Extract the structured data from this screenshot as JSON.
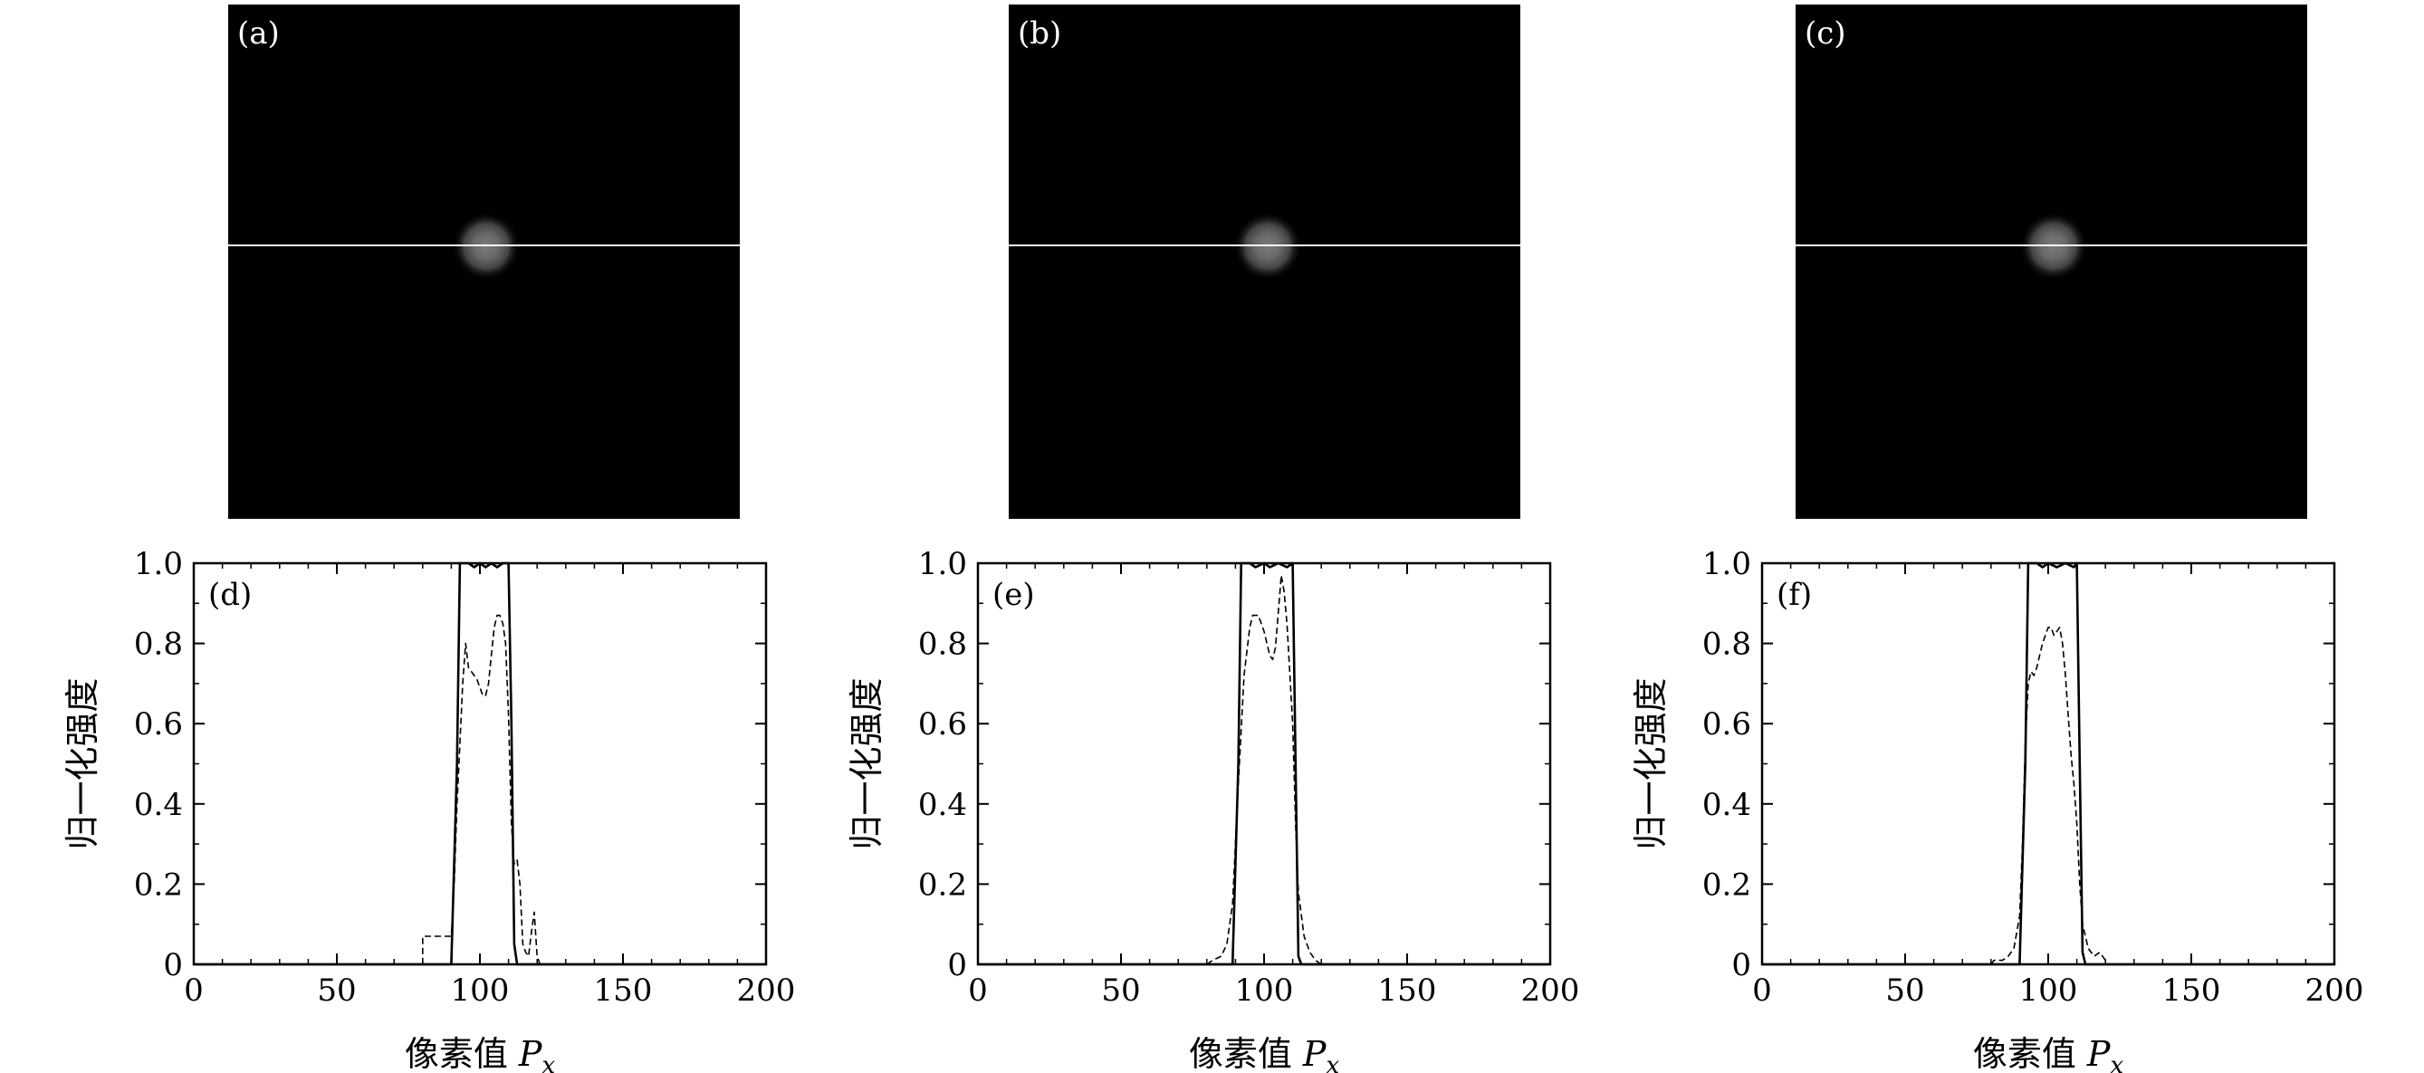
{
  "images": [
    {
      "label": "(a)"
    },
    {
      "label": "(b)"
    },
    {
      "label": "(c)"
    }
  ],
  "chart_data": [
    {
      "type": "line",
      "panel_label": "(d)",
      "xlabel_text": "像素值 ",
      "xlabel_var": "P",
      "xlabel_sub": "x",
      "ylabel": "归一化强度",
      "xlim": [
        0,
        200
      ],
      "ylim": [
        0,
        1
      ],
      "xticks": [
        "0",
        "50",
        "100",
        "150",
        "200"
      ],
      "yticks": [
        "0",
        "0.2",
        "0.4",
        "0.6",
        "0.8",
        "1.0"
      ],
      "grid": false,
      "series": [
        {
          "style": "solid",
          "points": [
            [
              0,
              0
            ],
            [
              90,
              0
            ],
            [
              92,
              0.5
            ],
            [
              93,
              1.0
            ],
            [
              96,
              1.0
            ],
            [
              98,
              0.99
            ],
            [
              100,
              1.0
            ],
            [
              102,
              0.99
            ],
            [
              104,
              1.0
            ],
            [
              106,
              0.99
            ],
            [
              108,
              1.0
            ],
            [
              110,
              1.0
            ],
            [
              111,
              0.6
            ],
            [
              112,
              0.05
            ],
            [
              113,
              0
            ],
            [
              200,
              0
            ]
          ]
        },
        {
          "style": "dashed",
          "points": [
            [
              0,
              0
            ],
            [
              80,
              0
            ],
            [
              80,
              0.07
            ],
            [
              85,
              0.07
            ],
            [
              90,
              0.07
            ],
            [
              91,
              0.2
            ],
            [
              92,
              0.4
            ],
            [
              93,
              0.55
            ],
            [
              94,
              0.7
            ],
            [
              95,
              0.8
            ],
            [
              96,
              0.74
            ],
            [
              97,
              0.73
            ],
            [
              98,
              0.72
            ],
            [
              99,
              0.71
            ],
            [
              100,
              0.69
            ],
            [
              101,
              0.67
            ],
            [
              102,
              0.67
            ],
            [
              103,
              0.7
            ],
            [
              104,
              0.77
            ],
            [
              105,
              0.84
            ],
            [
              106,
              0.87
            ],
            [
              107,
              0.87
            ],
            [
              108,
              0.85
            ],
            [
              109,
              0.8
            ],
            [
              110,
              0.62
            ],
            [
              111,
              0.35
            ],
            [
              112,
              0.25
            ],
            [
              113,
              0.26
            ],
            [
              114,
              0.2
            ],
            [
              115,
              0.05
            ],
            [
              116,
              0.03
            ],
            [
              117,
              0.02
            ],
            [
              118,
              0.08
            ],
            [
              119,
              0.13
            ],
            [
              120,
              0.02
            ],
            [
              121,
              0
            ],
            [
              200,
              0
            ]
          ]
        }
      ]
    },
    {
      "type": "line",
      "panel_label": "(e)",
      "xlabel_text": "像素值 ",
      "xlabel_var": "P",
      "xlabel_sub": "x",
      "ylabel": "归一化强度",
      "xlim": [
        0,
        200
      ],
      "ylim": [
        0,
        1
      ],
      "xticks": [
        "0",
        "50",
        "100",
        "150",
        "200"
      ],
      "yticks": [
        "0",
        "0.2",
        "0.4",
        "0.6",
        "0.8",
        "1.0"
      ],
      "grid": false,
      "series": [
        {
          "style": "solid",
          "points": [
            [
              0,
              0
            ],
            [
              89,
              0
            ],
            [
              91,
              0.5
            ],
            [
              92,
              1.0
            ],
            [
              95,
              1.0
            ],
            [
              97,
              0.99
            ],
            [
              100,
              1.0
            ],
            [
              102,
              0.99
            ],
            [
              105,
              1.0
            ],
            [
              108,
              0.99
            ],
            [
              110,
              1.0
            ],
            [
              111,
              0.5
            ],
            [
              112,
              0.02
            ],
            [
              113,
              0
            ],
            [
              200,
              0
            ]
          ]
        },
        {
          "style": "dashed",
          "points": [
            [
              0,
              0
            ],
            [
              80,
              0
            ],
            [
              82,
              0.01
            ],
            [
              85,
              0.02
            ],
            [
              87,
              0.05
            ],
            [
              89,
              0.15
            ],
            [
              91,
              0.45
            ],
            [
              93,
              0.72
            ],
            [
              95,
              0.84
            ],
            [
              96,
              0.87
            ],
            [
              98,
              0.87
            ],
            [
              100,
              0.83
            ],
            [
              102,
              0.77
            ],
            [
              103,
              0.76
            ],
            [
              104,
              0.79
            ],
            [
              105,
              0.88
            ],
            [
              106,
              0.97
            ],
            [
              107,
              0.93
            ],
            [
              108,
              0.85
            ],
            [
              110,
              0.6
            ],
            [
              111,
              0.35
            ],
            [
              112,
              0.18
            ],
            [
              114,
              0.07
            ],
            [
              116,
              0.03
            ],
            [
              118,
              0.01
            ],
            [
              120,
              0
            ],
            [
              200,
              0
            ]
          ]
        }
      ]
    },
    {
      "type": "line",
      "panel_label": "(f)",
      "xlabel_text": "像素值 ",
      "xlabel_var": "P",
      "xlabel_sub": "x",
      "ylabel": "归一化强度",
      "xlim": [
        0,
        200
      ],
      "ylim": [
        0,
        1
      ],
      "xticks": [
        "0",
        "50",
        "100",
        "150",
        "200"
      ],
      "yticks": [
        "0",
        "0.2",
        "0.4",
        "0.6",
        "0.8",
        "1.0"
      ],
      "grid": false,
      "series": [
        {
          "style": "solid",
          "points": [
            [
              0,
              0
            ],
            [
              90,
              0
            ],
            [
              92,
              0.5
            ],
            [
              93,
              1.0
            ],
            [
              96,
              1.0
            ],
            [
              98,
              0.99
            ],
            [
              100,
              1.0
            ],
            [
              103,
              0.99
            ],
            [
              106,
              1.0
            ],
            [
              109,
              0.99
            ],
            [
              110,
              1.0
            ],
            [
              111,
              0.5
            ],
            [
              112,
              0.03
            ],
            [
              113,
              0
            ],
            [
              200,
              0
            ]
          ]
        },
        {
          "style": "dashed",
          "points": [
            [
              0,
              0
            ],
            [
              80,
              0
            ],
            [
              81,
              0.01
            ],
            [
              84,
              0.01
            ],
            [
              86,
              0.02
            ],
            [
              88,
              0.04
            ],
            [
              90,
              0.12
            ],
            [
              91,
              0.3
            ],
            [
              92,
              0.55
            ],
            [
              93,
              0.7
            ],
            [
              94,
              0.73
            ],
            [
              95,
              0.72
            ],
            [
              96,
              0.74
            ],
            [
              97,
              0.77
            ],
            [
              98,
              0.8
            ],
            [
              99,
              0.82
            ],
            [
              100,
              0.84
            ],
            [
              101,
              0.84
            ],
            [
              102,
              0.82
            ],
            [
              103,
              0.83
            ],
            [
              104,
              0.84
            ],
            [
              105,
              0.8
            ],
            [
              106,
              0.72
            ],
            [
              107,
              0.62
            ],
            [
              108,
              0.52
            ],
            [
              109,
              0.45
            ],
            [
              110,
              0.35
            ],
            [
              111,
              0.2
            ],
            [
              112,
              0.1
            ],
            [
              114,
              0.04
            ],
            [
              116,
              0.02
            ],
            [
              118,
              0.03
            ],
            [
              120,
              0.01
            ],
            [
              121,
              0
            ],
            [
              200,
              0
            ]
          ]
        }
      ]
    }
  ]
}
